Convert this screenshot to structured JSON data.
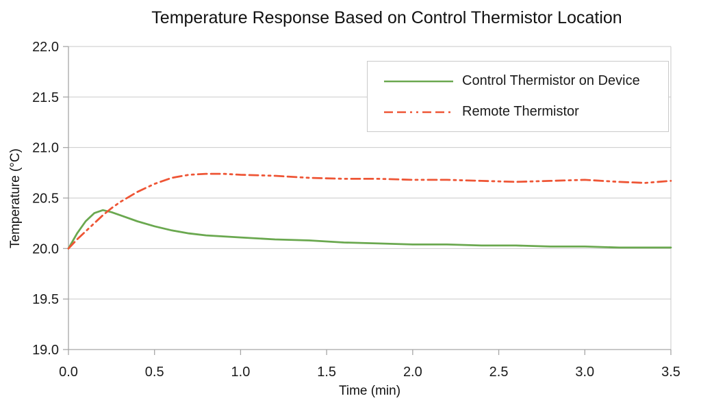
{
  "chart_data": {
    "type": "line",
    "title": "Temperature Response Based on Control Thermistor Location",
    "xlabel": "Time (min)",
    "ylabel": "Temperature (°C)",
    "xlim": [
      0.0,
      3.5
    ],
    "ylim": [
      19.0,
      22.0
    ],
    "x_ticks": [
      "0.0",
      "0.5",
      "1.0",
      "1.5",
      "2.0",
      "2.5",
      "3.0",
      "3.5"
    ],
    "y_ticks": [
      "19.0",
      "19.5",
      "20.0",
      "20.5",
      "21.0",
      "21.5",
      "22.0"
    ],
    "grid": "horizontal",
    "legend_position": "top-right-inside",
    "colors": {
      "grid": "#c9c9c9",
      "axis": "#a6a6a6",
      "text": "#1a1a1a",
      "legend_border": "#c9c9c9",
      "background": "#ffffff"
    },
    "x": [
      0,
      0.05,
      0.1,
      0.15,
      0.2,
      0.25,
      0.3,
      0.4,
      0.5,
      0.6,
      0.7,
      0.8,
      0.9,
      1.0,
      1.2,
      1.4,
      1.6,
      1.8,
      2.0,
      2.2,
      2.4,
      2.6,
      2.8,
      3.0,
      3.2,
      3.35,
      3.5
    ],
    "series": [
      {
        "name": "Control Thermistor on Device",
        "color": "#6aa84f",
        "style": "solid",
        "y": [
          20.0,
          20.15,
          20.27,
          20.35,
          20.38,
          20.36,
          20.33,
          20.27,
          20.22,
          20.18,
          20.15,
          20.13,
          20.12,
          20.11,
          20.09,
          20.08,
          20.06,
          20.05,
          20.04,
          20.04,
          20.03,
          20.03,
          20.02,
          20.02,
          20.01,
          20.01,
          20.01
        ]
      },
      {
        "name": "Remote Thermistor",
        "color": "#ee5535",
        "style": "dash-dash-dot-dot",
        "y": [
          20.0,
          20.09,
          20.17,
          20.25,
          20.33,
          20.4,
          20.46,
          20.56,
          20.64,
          20.7,
          20.73,
          20.74,
          20.74,
          20.73,
          20.72,
          20.7,
          20.69,
          20.69,
          20.68,
          20.68,
          20.67,
          20.66,
          20.67,
          20.68,
          20.66,
          20.65,
          20.67
        ]
      }
    ]
  }
}
